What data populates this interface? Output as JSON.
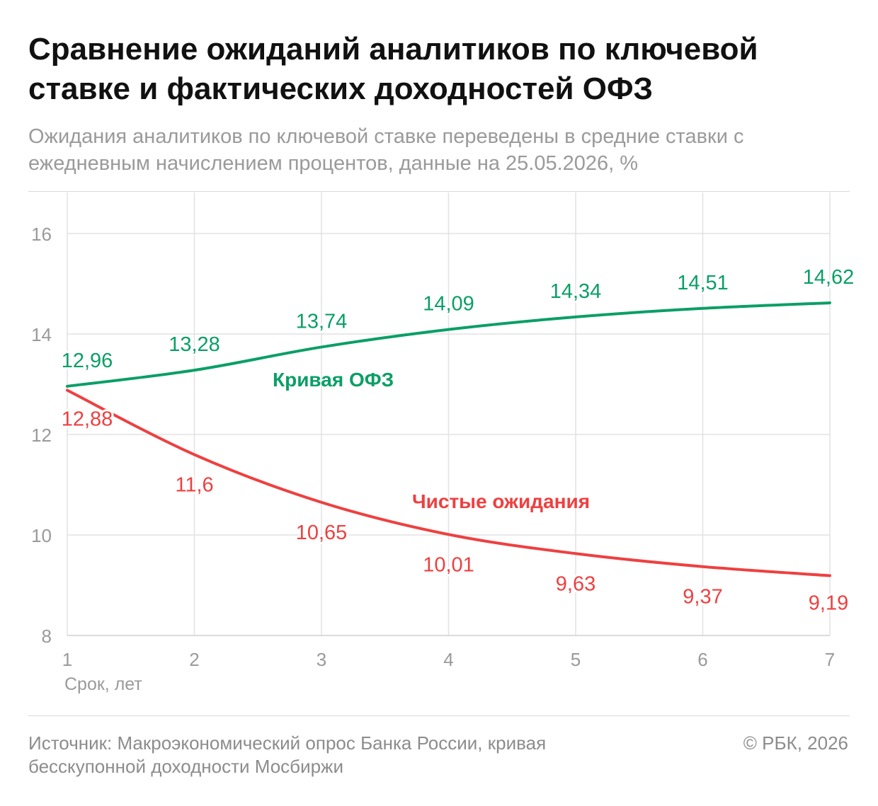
{
  "title": "Сравнение ожиданий аналитиков по ключевой ставке и фактических доходностей ОФЗ",
  "subtitle": "Ожидания аналитиков по ключевой ставке переведены в средние ставки с ежедневным начислением процентов, данные на 25.05.2026, %",
  "footer": {
    "source": "Источник: Макроэкономический опрос Банка России, кривая бесскупонной доходности Мосбиржи",
    "copyright": "© РБК, 2026"
  },
  "chart_data": {
    "type": "line",
    "xlabel": "Срок, лет",
    "ylabel": "",
    "x": [
      1,
      2,
      3,
      4,
      5,
      6,
      7
    ],
    "x_tick_labels": [
      "1",
      "2",
      "3",
      "4",
      "5",
      "6",
      "7"
    ],
    "ylim": [
      8,
      16
    ],
    "y_ticks": [
      8,
      10,
      12,
      14,
      16
    ],
    "y_tick_labels": [
      "8",
      "10",
      "12",
      "14",
      "16"
    ],
    "grid": true,
    "legend": "inline labels",
    "series": [
      {
        "name": "Кривая ОФЗ",
        "color": "#0a9f66",
        "values": [
          12.96,
          13.28,
          13.74,
          14.09,
          14.34,
          14.51,
          14.62
        ],
        "labels": [
          "12,96",
          "13,28",
          "13,74",
          "14,09",
          "14,34",
          "14,51",
          "14,62"
        ]
      },
      {
        "name": "Чистые ожидания",
        "color": "#ee4040",
        "values": [
          12.88,
          11.6,
          10.65,
          10.01,
          9.63,
          9.37,
          9.19
        ],
        "labels": [
          "12,88",
          "11,6",
          "10,65",
          "10,01",
          "9,63",
          "9,37",
          "9,19"
        ]
      }
    ]
  }
}
